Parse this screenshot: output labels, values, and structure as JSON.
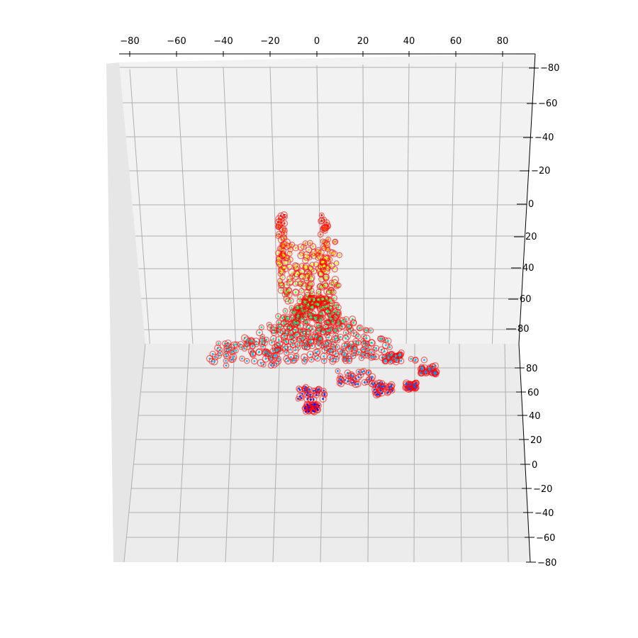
{
  "chart_data": {
    "type": "scatter",
    "projection": "3d",
    "title": "",
    "xlabel": "",
    "ylabel": "",
    "zlabel": "",
    "xlim": [
      -90,
      90
    ],
    "ylim": [
      -80,
      90
    ],
    "zlim": [
      -80,
      90
    ],
    "grid": true,
    "pane_color": "#f2f2f2",
    "grid_color": "#b0b0b0",
    "outline_color": "#ff0000",
    "x_ticks": [
      "−80",
      "−60",
      "−40",
      "−20",
      "0",
      "20",
      "40",
      "60",
      "80"
    ],
    "y_ticks": [
      "−80",
      "−60",
      "−40",
      "−20",
      "0",
      "20",
      "40",
      "60",
      "80"
    ],
    "z_ticks": [
      "−80",
      "−60",
      "−40",
      "−20",
      "0",
      "20",
      "40",
      "60",
      "80"
    ],
    "colormap": [
      "#0000ff",
      "#00bfff",
      "#00ff7f",
      "#ffff00",
      "#ff0000"
    ],
    "point_cloud": {
      "description_free": true,
      "approx_points": 900
    }
  }
}
